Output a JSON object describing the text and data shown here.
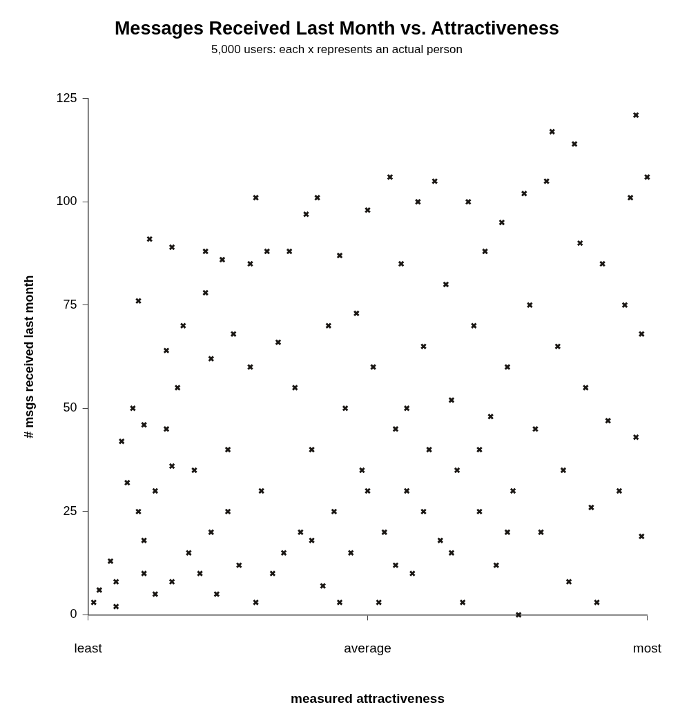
{
  "chart_data": {
    "type": "scatter",
    "title": "Messages Received Last Month vs. Attractiveness",
    "subtitle": "5,000 users: each x represents an actual person",
    "xlabel": "measured attractiveness",
    "ylabel": "# msgs received last month",
    "categories": [
      "least",
      null,
      null,
      null,
      null,
      null,
      null,
      null,
      null,
      null,
      null,
      null,
      null,
      null,
      null,
      null,
      null,
      null,
      null,
      null,
      null,
      null,
      null,
      null,
      null,
      null,
      null,
      null,
      null,
      null,
      null,
      null,
      null,
      null,
      null,
      null,
      null,
      null,
      null,
      null,
      null,
      null,
      null,
      null,
      null,
      null,
      null,
      null,
      null,
      null,
      "average",
      null,
      null,
      null,
      null,
      null,
      null,
      null,
      null,
      null,
      null,
      null,
      null,
      null,
      null,
      null,
      null,
      null,
      null,
      null,
      null,
      null,
      null,
      null,
      null,
      null,
      null,
      null,
      null,
      null,
      null,
      null,
      null,
      null,
      null,
      null,
      null,
      null,
      null,
      null,
      null,
      null,
      null,
      null,
      null,
      null,
      null,
      null,
      null,
      null,
      "most"
    ],
    "ylim": [
      0,
      125
    ],
    "yticks": [
      0,
      25,
      50,
      75,
      100,
      125
    ],
    "grid": false,
    "legend": false,
    "marker": "cross",
    "series": [
      {
        "color": "#1a1714",
        "values": [
          null,
          3,
          6,
          null,
          13,
          2,
          42,
          32,
          50,
          76,
          46,
          91,
          30,
          null,
          64,
          36,
          55,
          70,
          15,
          35,
          10,
          88,
          62,
          5,
          86,
          40,
          68,
          12,
          null,
          85,
          101,
          30,
          88,
          10,
          66,
          15,
          88,
          55,
          20,
          97,
          40,
          101,
          7,
          70,
          25,
          87,
          50,
          15,
          73,
          35,
          98,
          60,
          3,
          20,
          106,
          45,
          85,
          30,
          10,
          100,
          65,
          40,
          105,
          18,
          80,
          52,
          35,
          3,
          100,
          70,
          25,
          88,
          48,
          12,
          95,
          60,
          30,
          0,
          102,
          75,
          45,
          20,
          105,
          117,
          65,
          35,
          8,
          114,
          90,
          55,
          26,
          3,
          85,
          47,
          null,
          30,
          75,
          101,
          43,
          68,
          106
        ]
      },
      {
        "color": "#1a1714",
        "values": [
          null,
          null,
          null,
          null,
          null,
          8,
          null,
          null,
          null,
          25,
          10,
          null,
          5,
          null,
          45,
          8,
          null,
          null,
          null,
          null,
          null,
          78,
          20,
          null,
          null,
          25,
          null,
          null,
          null,
          60,
          3,
          null,
          null,
          null,
          null,
          null,
          null,
          null,
          null,
          null,
          18,
          null,
          null,
          null,
          null,
          3,
          null,
          null,
          null,
          null,
          30,
          null,
          null,
          null,
          null,
          12,
          null,
          50,
          null,
          null,
          25,
          null,
          null,
          null,
          null,
          15,
          null,
          null,
          null,
          null,
          40,
          null,
          null,
          null,
          null,
          20,
          null,
          null,
          null,
          null,
          null,
          null,
          null,
          null,
          null,
          null,
          null,
          null,
          null,
          null,
          null,
          null,
          null,
          null,
          null,
          null,
          null,
          null,
          121,
          19,
          null
        ]
      },
      {
        "color": "#1a1714",
        "values": [
          null,
          null,
          null,
          null,
          null,
          null,
          null,
          null,
          null,
          null,
          18,
          null,
          null,
          null,
          null,
          89,
          null,
          null,
          null,
          null,
          null,
          null,
          null,
          null,
          null,
          null,
          null,
          null,
          null,
          null,
          null,
          null,
          null,
          null,
          null,
          null,
          null,
          null,
          null,
          null,
          null,
          null,
          null,
          null,
          null,
          null,
          null,
          null,
          null,
          null,
          null,
          null,
          null,
          null,
          null,
          null,
          null,
          null,
          null,
          null,
          null,
          null,
          null,
          null,
          null,
          null,
          null,
          null,
          null,
          null,
          null,
          null,
          null,
          null,
          null,
          null,
          null,
          null,
          null,
          null,
          null,
          null,
          null,
          null,
          null,
          null,
          null,
          null,
          null,
          null,
          null,
          null,
          null,
          null,
          null,
          null,
          null,
          null,
          null,
          null,
          null
        ]
      }
    ]
  }
}
